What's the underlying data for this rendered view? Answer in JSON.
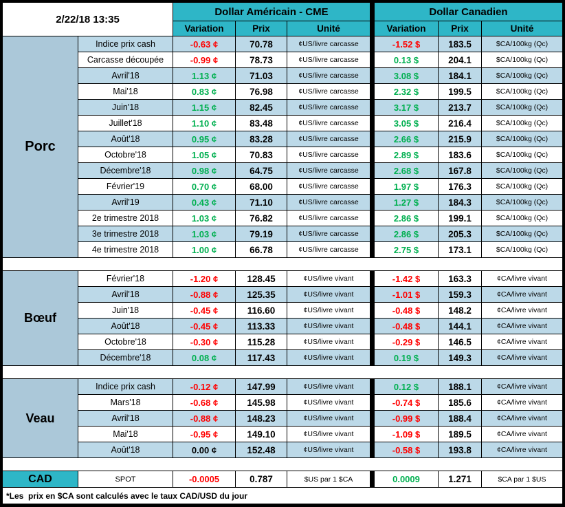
{
  "meta": {
    "timestamp": "2/22/18 13:35",
    "footnote": "*Les  prix en $CA sont calculés avec le taux CAD/USD du jour"
  },
  "header": {
    "usd_title": "Dollar Américain - CME",
    "cad_title": "Dollar Canadien",
    "columns": [
      "Variation",
      "Prix",
      "Unité"
    ]
  },
  "colors": {
    "header_teal": "#2EB6C7",
    "row_light_blue": "#BCD9E8",
    "section_blue_gray": "#ABC8D9",
    "negative_red": "#FF0000",
    "positive_green": "#00B050",
    "neutral_black": "#000000"
  },
  "sections": [
    {
      "name": "Porc",
      "us_unit": "¢US/livre carcasse",
      "ca_unit": "$CA/100kg (Qc)",
      "stripe_first": "blue",
      "rows": [
        {
          "label": "Indice prix cash",
          "us_var": "-0.63 ¢",
          "us_price": "70.78",
          "ca_var": "-1.52 $",
          "ca_price": "183.5"
        },
        {
          "label": "Carcasse découpée",
          "us_var": "-0.99 ¢",
          "us_price": "78.73",
          "ca_var": "0.13 $",
          "ca_price": "204.1"
        },
        {
          "label": "Avril'18",
          "us_var": "1.13 ¢",
          "us_price": "71.03",
          "ca_var": "3.08 $",
          "ca_price": "184.1"
        },
        {
          "label": "Mai'18",
          "us_var": "0.83 ¢",
          "us_price": "76.98",
          "ca_var": "2.32 $",
          "ca_price": "199.5"
        },
        {
          "label": "Juin'18",
          "us_var": "1.15 ¢",
          "us_price": "82.45",
          "ca_var": "3.17 $",
          "ca_price": "213.7"
        },
        {
          "label": "Juillet'18",
          "us_var": "1.10 ¢",
          "us_price": "83.48",
          "ca_var": "3.05 $",
          "ca_price": "216.4"
        },
        {
          "label": "Août'18",
          "us_var": "0.95 ¢",
          "us_price": "83.28",
          "ca_var": "2.66 $",
          "ca_price": "215.9"
        },
        {
          "label": "Octobre'18",
          "us_var": "1.05 ¢",
          "us_price": "70.83",
          "ca_var": "2.89 $",
          "ca_price": "183.6"
        },
        {
          "label": "Décembre'18",
          "us_var": "0.98 ¢",
          "us_price": "64.75",
          "ca_var": "2.68 $",
          "ca_price": "167.8"
        },
        {
          "label": "Février'19",
          "us_var": "0.70 ¢",
          "us_price": "68.00",
          "ca_var": "1.97 $",
          "ca_price": "176.3"
        },
        {
          "label": "Avril'19",
          "us_var": "0.43 ¢",
          "us_price": "71.10",
          "ca_var": "1.27 $",
          "ca_price": "184.3"
        },
        {
          "label": "2e trimestre 2018",
          "us_var": "1.03 ¢",
          "us_price": "76.82",
          "ca_var": "2.86 $",
          "ca_price": "199.1"
        },
        {
          "label": "3e trimestre 2018",
          "us_var": "1.03 ¢",
          "us_price": "79.19",
          "ca_var": "2.86 $",
          "ca_price": "205.3"
        },
        {
          "label": "4e trimestre 2018",
          "us_var": "1.00 ¢",
          "us_price": "66.78",
          "ca_var": "2.75 $",
          "ca_price": "173.1"
        }
      ]
    },
    {
      "name": "Bœuf",
      "us_unit": "¢US/livre vivant",
      "ca_unit": "¢CA/livre vivant",
      "stripe_first": "white",
      "rows": [
        {
          "label": "Février'18",
          "us_var": "-1.20 ¢",
          "us_price": "128.45",
          "ca_var": "-1.42 $",
          "ca_price": "163.3"
        },
        {
          "label": "Avril'18",
          "us_var": "-0.88 ¢",
          "us_price": "125.35",
          "ca_var": "-1.01 $",
          "ca_price": "159.3"
        },
        {
          "label": "Juin'18",
          "us_var": "-0.45 ¢",
          "us_price": "116.60",
          "ca_var": "-0.48 $",
          "ca_price": "148.2"
        },
        {
          "label": "Août'18",
          "us_var": "-0.45 ¢",
          "us_price": "113.33",
          "ca_var": "-0.48 $",
          "ca_price": "144.1"
        },
        {
          "label": "Octobre'18",
          "us_var": "-0.30 ¢",
          "us_price": "115.28",
          "ca_var": "-0.29 $",
          "ca_price": "146.5"
        },
        {
          "label": "Décembre'18",
          "us_var": "0.08 ¢",
          "us_price": "117.43",
          "ca_var": "0.19 $",
          "ca_price": "149.3"
        }
      ]
    },
    {
      "name": "Veau",
      "us_unit": "¢US/livre vivant",
      "ca_unit": "¢CA/livre vivant",
      "stripe_first": "blue",
      "rows": [
        {
          "label": "Indice prix cash",
          "us_var": "-0.12 ¢",
          "us_price": "147.99",
          "ca_var": "0.12 $",
          "ca_price": "188.1"
        },
        {
          "label": "Mars'18",
          "us_var": "-0.68 ¢",
          "us_price": "145.98",
          "ca_var": "-0.74 $",
          "ca_price": "185.6"
        },
        {
          "label": "Avril'18",
          "us_var": "-0.88 ¢",
          "us_price": "148.23",
          "ca_var": "-0.99 $",
          "ca_price": "188.4"
        },
        {
          "label": "Mai'18",
          "us_var": "-0.95 ¢",
          "us_price": "149.10",
          "ca_var": "-1.09 $",
          "ca_price": "189.5"
        },
        {
          "label": "Août'18",
          "us_var": "0.00 ¢",
          "us_price": "152.48",
          "ca_var": "-0.58 $",
          "ca_price": "193.8"
        }
      ]
    }
  ],
  "cad": {
    "name": "CAD",
    "label": "SPOT",
    "us_var": "-0.0005",
    "us_price": "0.787",
    "us_unit": "$US par 1 $CA",
    "ca_var": "0.0009",
    "ca_price": "1.271",
    "ca_unit": "$CA par 1 $US"
  }
}
